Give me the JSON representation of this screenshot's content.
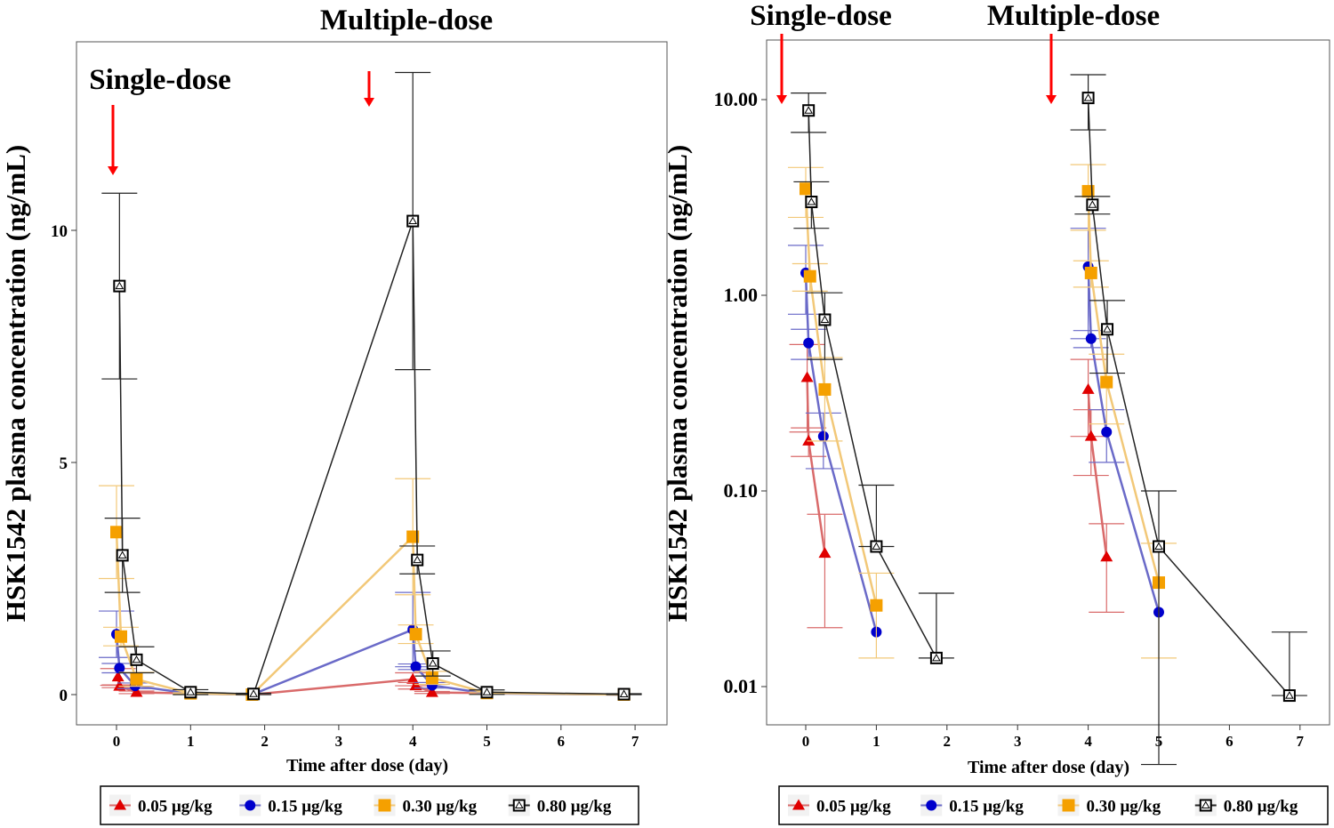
{
  "chart_data": [
    {
      "type": "line",
      "panel": "linear",
      "ylabel": "HSK1542 plasma concentration (ng/mL)",
      "xlabel": "Time after dose (day)",
      "xlim": [
        -0.5,
        7.2
      ],
      "ylim": [
        -0.6,
        14
      ],
      "xticks": [
        0,
        1,
        2,
        3,
        4,
        5,
        6,
        7
      ],
      "yticks": [
        0,
        5,
        10
      ],
      "ytick_labels": [
        "0",
        "5",
        "10"
      ],
      "annotations": [
        "Single-dose",
        "Multiple-dose"
      ]
    },
    {
      "type": "line",
      "panel": "log",
      "yscale": "log",
      "ylabel": "HSK1542 plasma concentration (ng/mL)",
      "xlabel": "Time after dose (day)",
      "xlim": [
        -0.5,
        7.2
      ],
      "ylim": [
        0.007,
        18
      ],
      "xticks": [
        0,
        1,
        2,
        3,
        4,
        5,
        6,
        7
      ],
      "yticks": [
        10,
        1,
        0.1,
        0.01
      ],
      "ytick_labels": [
        "10.00",
        "1.00",
        "0.10",
        "0.01"
      ],
      "annotations": [
        "Single-dose",
        "Multiple-dose"
      ]
    }
  ],
  "series": [
    {
      "name": "0.05 μg/kg",
      "color": "#e00000",
      "line": "#d96a6a",
      "marker": "triangle",
      "single": [
        [
          0.02,
          0.38,
          0.18
        ],
        [
          0.04,
          0.18,
          0.03
        ],
        [
          0.27,
          0.048,
          0.028
        ]
      ],
      "multiple": [
        [
          4.0,
          0.33,
          0.14
        ],
        [
          4.04,
          0.19,
          0.07
        ],
        [
          4.26,
          0.046,
          0.022
        ]
      ]
    },
    {
      "name": "0.15 μg/kg",
      "color": "#0000cc",
      "line": "#6a6ac8",
      "marker": "circle",
      "single": [
        [
          0.0,
          1.3,
          0.5
        ],
        [
          0.04,
          0.57,
          0.1
        ],
        [
          0.25,
          0.19,
          0.06
        ],
        [
          1.0,
          0.019,
          0.0
        ]
      ],
      "multiple": [
        [
          4.0,
          1.4,
          0.8
        ],
        [
          4.04,
          0.6,
          0.06
        ],
        [
          4.26,
          0.2,
          0.06
        ],
        [
          5.0,
          0.024,
          0.0
        ]
      ]
    },
    {
      "name": "0.30 μg/kg",
      "color": "#f5a000",
      "line": "#f2c878",
      "marker": "square",
      "single": [
        [
          0.0,
          3.5,
          1.0
        ],
        [
          0.06,
          1.25,
          0.2
        ],
        [
          0.27,
          0.33,
          0.15
        ],
        [
          1.0,
          0.026,
          0.012
        ]
      ],
      "multiple": [
        [
          4.0,
          3.4,
          1.25
        ],
        [
          4.04,
          1.3,
          0.2
        ],
        [
          4.26,
          0.36,
          0.14
        ],
        [
          5.0,
          0.034,
          0.02
        ]
      ]
    },
    {
      "name": "0.80 μg/kg",
      "color": "#000000",
      "line": "#222222",
      "marker": "open-square",
      "single": [
        [
          0.04,
          8.8,
          2.0
        ],
        [
          0.08,
          3.0,
          0.8
        ],
        [
          0.27,
          0.75,
          0.28
        ],
        [
          1.0,
          0.052,
          0.055
        ],
        [
          1.85,
          0.014,
          0.016
        ]
      ],
      "multiple": [
        [
          4.0,
          10.2,
          3.2
        ],
        [
          4.06,
          2.9,
          0.3
        ],
        [
          4.27,
          0.67,
          0.27
        ],
        [
          5.0,
          0.052,
          0.048
        ],
        [
          6.85,
          0.009,
          0.01
        ]
      ]
    }
  ],
  "zero_times": [
    0,
    1.83,
    3.95,
    6.85
  ]
}
